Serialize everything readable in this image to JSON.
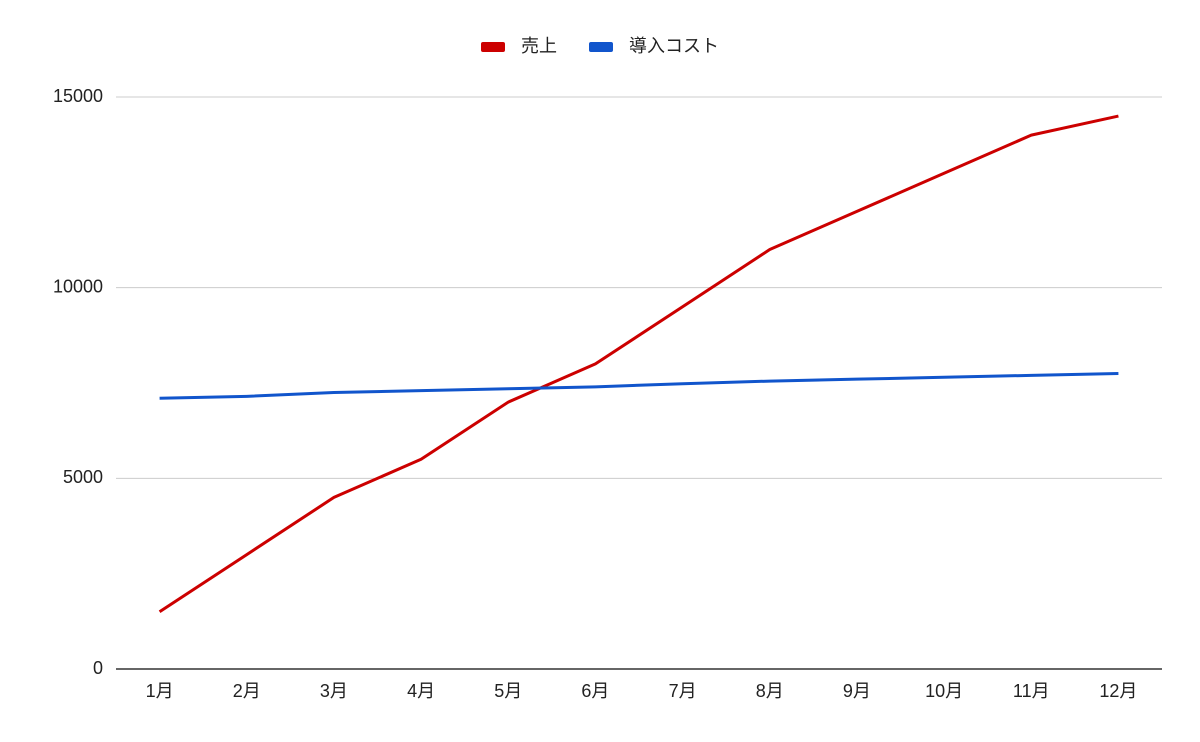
{
  "chart_data": {
    "type": "line",
    "categories": [
      "1月",
      "2月",
      "3月",
      "4月",
      "5月",
      "6月",
      "7月",
      "8月",
      "9月",
      "10月",
      "11月",
      "12月"
    ],
    "series": [
      {
        "name": "売上",
        "color": "#cc0000",
        "values": [
          1500,
          3000,
          4500,
          5500,
          7000,
          8000,
          9500,
          11000,
          12000,
          13000,
          14000,
          14500
        ]
      },
      {
        "name": "導入コスト",
        "color": "#1155cc",
        "values": [
          7100,
          7150,
          7250,
          7300,
          7350,
          7400,
          7480,
          7550,
          7600,
          7650,
          7700,
          7750
        ]
      }
    ],
    "ylim": [
      0,
      15000
    ],
    "yticks": [
      0,
      5000,
      10000,
      15000
    ],
    "grid": true,
    "legend": "top"
  }
}
